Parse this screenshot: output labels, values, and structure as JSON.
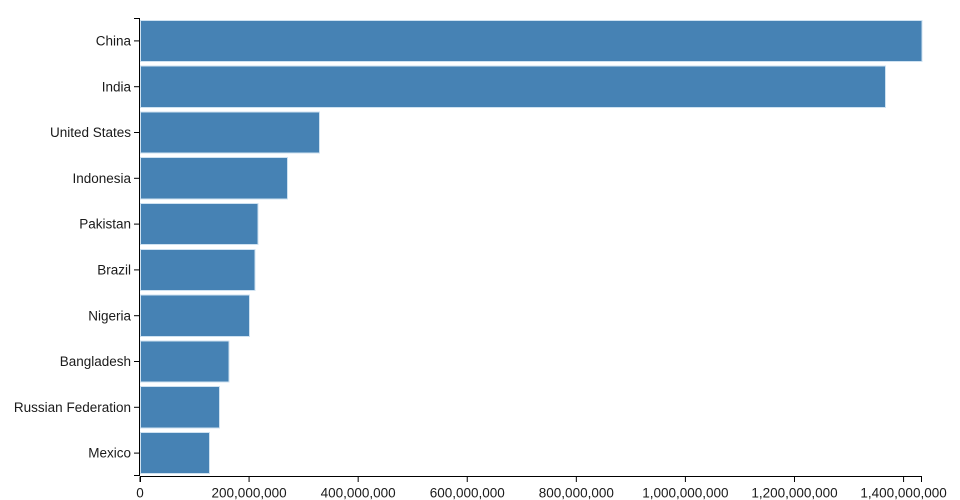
{
  "chart_data": {
    "type": "bar",
    "orientation": "horizontal",
    "title": "",
    "xlabel": "",
    "ylabel": "",
    "categories": [
      "China",
      "India",
      "United States",
      "Indonesia",
      "Pakistan",
      "Brazil",
      "Nigeria",
      "Bangladesh",
      "Russian Federation",
      "Mexico"
    ],
    "values": [
      1433783686,
      1366417754,
      329064917,
      270625568,
      216565318,
      211049527,
      200963599,
      163046161,
      145872256,
      127575529
    ],
    "xlim": [
      0,
      1433783686
    ],
    "x_ticks": [
      {
        "value": 0,
        "label": "0"
      },
      {
        "value": 200000000,
        "label": "200,000,000"
      },
      {
        "value": 400000000,
        "label": "400,000,000"
      },
      {
        "value": 600000000,
        "label": "600,000,000"
      },
      {
        "value": 800000000,
        "label": "800,000,000"
      },
      {
        "value": 1000000000,
        "label": "1,000,000,000"
      },
      {
        "value": 1200000000,
        "label": "1,200,000,000"
      },
      {
        "value": 1400000000,
        "label": "1,400,000,000"
      }
    ],
    "grid": false,
    "legend_position": "none",
    "colors": {
      "bar": "#4682b4",
      "bar_edge": "#cfe2f1",
      "axis": "#000000",
      "text": "#1a1a1a",
      "background": "#ffffff"
    }
  }
}
